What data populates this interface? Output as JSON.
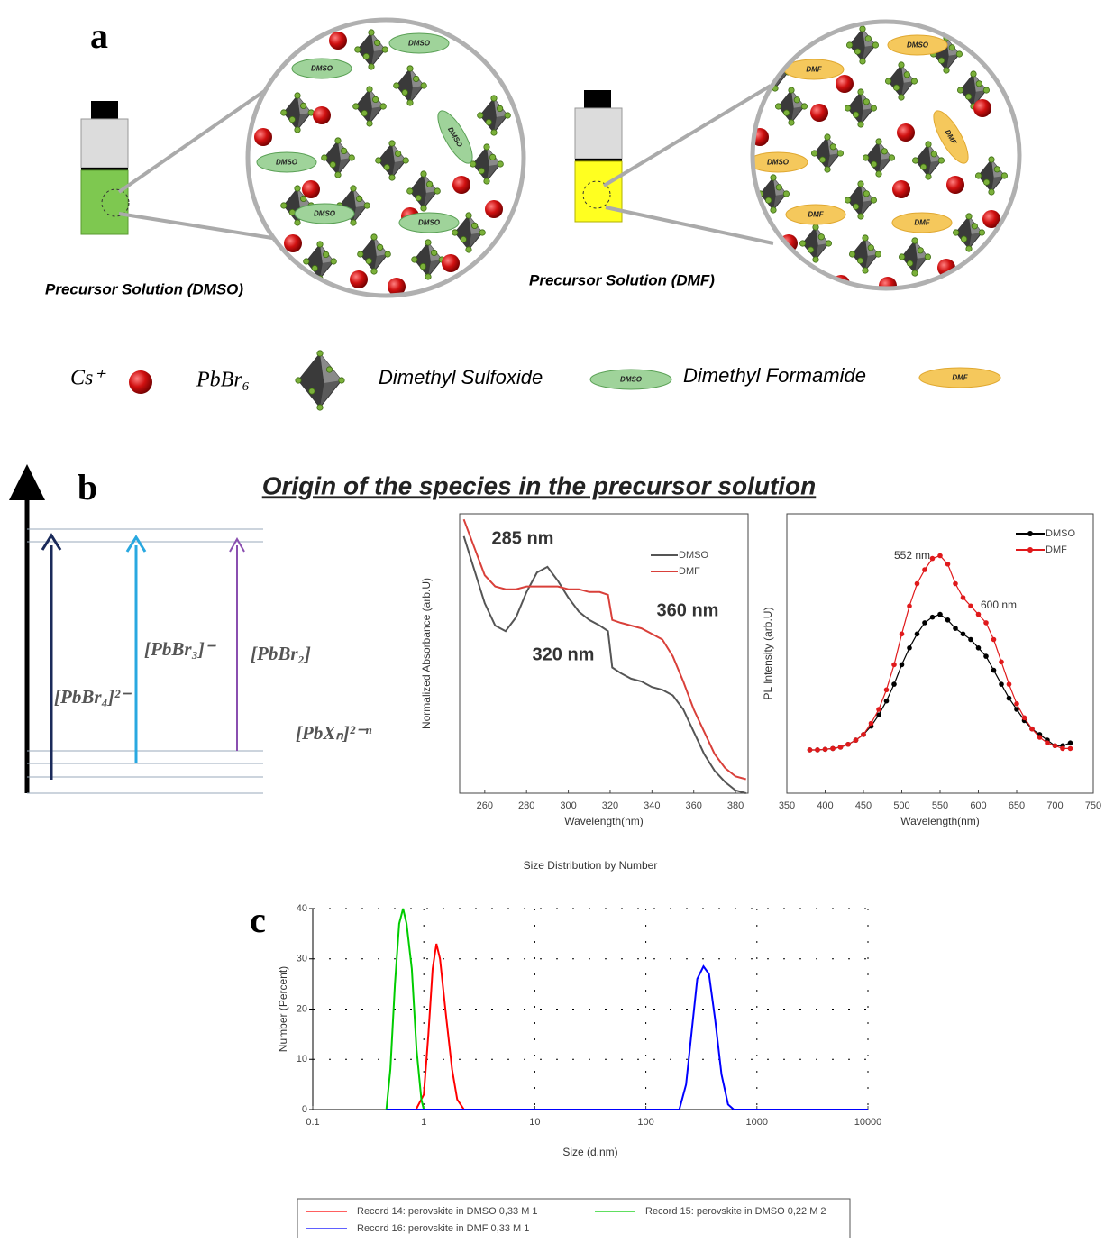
{
  "panel_a": {
    "label": "a",
    "solutions": [
      "Precursor Solution (DMSO)",
      "Precursor Solution (DMF)"
    ],
    "legend": {
      "cs": "Cs⁺",
      "pbbr6": "PbBr₆",
      "dmso_name": "Dimethyl Sulfoxide",
      "dmso": "DMSO",
      "dmf_name": "Dimethyl Formamide",
      "dmf": "DMF"
    }
  },
  "panel_b": {
    "label": "b",
    "title": "Origin of the species in the precursor solution",
    "species": [
      "[PbBr₄]²⁻",
      "[PbBr₃]⁻",
      "[PbBr₂]",
      "[PbXₙ]²⁻ⁿ"
    ]
  },
  "panel_c": {
    "label": "c"
  },
  "chart_data": [
    {
      "type": "line",
      "x_label": "Wavelength(nm)",
      "y_label": "Normalized Absorbance (arb.U)",
      "xlim": [
        248,
        386
      ],
      "ylim": [
        0,
        1
      ],
      "xticks": [
        260,
        280,
        300,
        320,
        340,
        360,
        380
      ],
      "legend": "upper right",
      "annotations": [
        "285 nm",
        "320 nm",
        "360 nm"
      ],
      "x": [
        250,
        255,
        260,
        265,
        270,
        275,
        280,
        285,
        290,
        295,
        300,
        305,
        310,
        315,
        319,
        321,
        325,
        330,
        335,
        340,
        345,
        350,
        355,
        360,
        365,
        370,
        375,
        380,
        385
      ],
      "series": [
        {
          "name": "DMSO",
          "color": "#555555",
          "values": [
            0.92,
            0.8,
            0.68,
            0.6,
            0.58,
            0.63,
            0.72,
            0.79,
            0.81,
            0.76,
            0.7,
            0.65,
            0.62,
            0.6,
            0.58,
            0.45,
            0.43,
            0.41,
            0.4,
            0.38,
            0.37,
            0.35,
            0.3,
            0.22,
            0.14,
            0.08,
            0.04,
            0.01,
            0.0
          ]
        },
        {
          "name": "DMF",
          "color": "#d9403a",
          "values": [
            0.98,
            0.88,
            0.78,
            0.74,
            0.73,
            0.73,
            0.74,
            0.74,
            0.74,
            0.74,
            0.73,
            0.73,
            0.72,
            0.72,
            0.71,
            0.62,
            0.61,
            0.6,
            0.59,
            0.57,
            0.55,
            0.49,
            0.4,
            0.3,
            0.22,
            0.14,
            0.09,
            0.06,
            0.05
          ]
        }
      ]
    },
    {
      "type": "line",
      "markers": true,
      "x_label": "Wavelength(nm)",
      "y_label": "PL Intensity (arb.U)",
      "xlim": [
        350,
        750
      ],
      "ylim": [
        0,
        1
      ],
      "xticks": [
        350,
        400,
        450,
        500,
        550,
        600,
        650,
        700,
        750
      ],
      "legend": "upper right",
      "annotations": [
        "552 nm",
        "600 nm"
      ],
      "x": [
        380,
        390,
        400,
        410,
        420,
        430,
        440,
        450,
        460,
        470,
        480,
        490,
        500,
        510,
        520,
        530,
        540,
        550,
        560,
        570,
        580,
        590,
        600,
        610,
        620,
        630,
        640,
        650,
        660,
        670,
        680,
        690,
        700,
        710,
        720
      ],
      "series": [
        {
          "name": "DMSO",
          "color": "#000000",
          "values": [
            0.155,
            0.155,
            0.157,
            0.16,
            0.165,
            0.175,
            0.19,
            0.21,
            0.24,
            0.28,
            0.33,
            0.39,
            0.46,
            0.52,
            0.57,
            0.61,
            0.63,
            0.64,
            0.62,
            0.59,
            0.57,
            0.55,
            0.52,
            0.49,
            0.44,
            0.39,
            0.34,
            0.3,
            0.26,
            0.23,
            0.21,
            0.19,
            0.17,
            0.17,
            0.18
          ]
        },
        {
          "name": "DMF",
          "color": "#e0191b",
          "values": [
            0.155,
            0.155,
            0.157,
            0.16,
            0.165,
            0.175,
            0.19,
            0.21,
            0.25,
            0.3,
            0.37,
            0.46,
            0.57,
            0.67,
            0.75,
            0.8,
            0.84,
            0.85,
            0.82,
            0.75,
            0.7,
            0.67,
            0.64,
            0.61,
            0.55,
            0.47,
            0.39,
            0.32,
            0.27,
            0.23,
            0.2,
            0.18,
            0.17,
            0.16,
            0.16
          ]
        }
      ]
    },
    {
      "type": "line",
      "title": "Size Distribution by Number",
      "x_label": "Size (d.nm)",
      "y_label": "Number (Percent)",
      "log_x": true,
      "grid": true,
      "xlim": [
        0.1,
        10000
      ],
      "ylim": [
        0,
        40
      ],
      "xticks": [
        0.1,
        1,
        10,
        100,
        1000,
        10000
      ],
      "yticks": [
        0,
        10,
        20,
        30,
        40
      ],
      "legend": "below",
      "series": [
        {
          "name": "Record 14: perovskite in DMSO 0,33 M 1",
          "color": "#ff0000",
          "x": [
            0.85,
            1.0,
            1.1,
            1.2,
            1.3,
            1.4,
            1.6,
            1.8,
            2.0,
            2.3
          ],
          "values": [
            0,
            3,
            15,
            28,
            33,
            30,
            18,
            8,
            2,
            0
          ]
        },
        {
          "name": "Record 15: perovskite in DMSO 0,22 M 2",
          "color": "#00cc00",
          "x": [
            0.46,
            0.5,
            0.55,
            0.6,
            0.65,
            0.7,
            0.78,
            0.86,
            0.95,
            1.0
          ],
          "values": [
            0,
            8,
            25,
            37,
            40,
            37,
            28,
            12,
            2,
            0
          ]
        },
        {
          "name": "Record 16: perovskite in DMF 0,33 M 1",
          "color": "#0000ff",
          "x": [
            0.46,
            200,
            230,
            260,
            290,
            330,
            370,
            420,
            480,
            550,
            620,
            10000
          ],
          "values": [
            0,
            0,
            5,
            16,
            26,
            28.5,
            27,
            18,
            7,
            1,
            0,
            0
          ]
        }
      ]
    }
  ]
}
